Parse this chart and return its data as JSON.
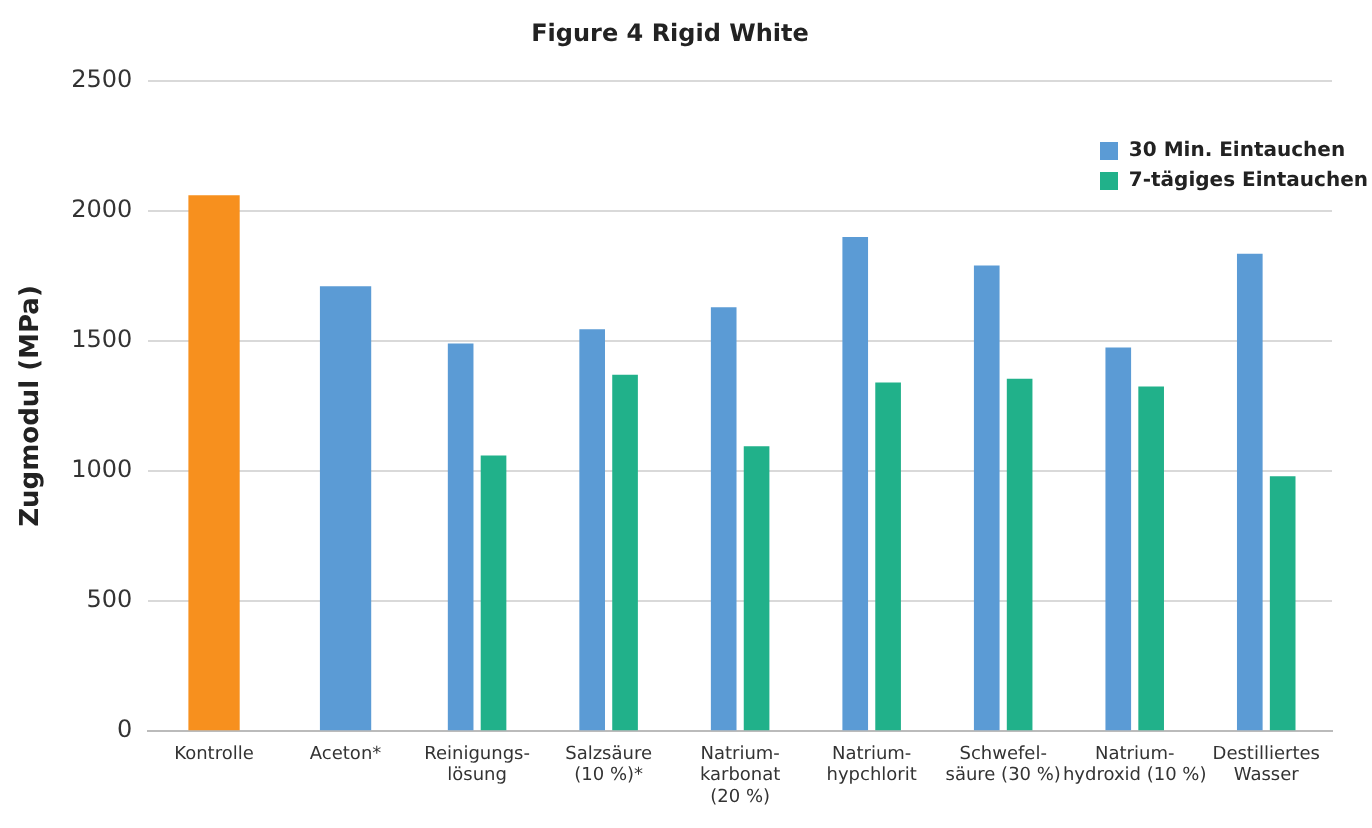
{
  "chart_data": {
    "type": "bar",
    "title": "Figure 4 Rigid White",
    "ylabel": "Zugmodul (MPa)",
    "categories": [
      "Kontrolle",
      "Aceton*",
      "Reinigungs-\nlösung",
      "Salzsäure\n(10 %)*",
      "Natrium-\nkarbonat\n(20 %)",
      "Natrium-\nhypchlorit",
      "Schwefel-\nsäure (30 %)",
      "Natrium-\nhydroxid (10 %)",
      "Destilliertes\nWasser"
    ],
    "series": [
      {
        "color": "#f7901e",
        "values": [
          2060,
          null,
          null,
          null,
          null,
          null,
          null,
          null,
          null
        ]
      },
      {
        "name": "30 Min. Eintauchen",
        "color": "#5b9bd5",
        "values": [
          null,
          1710,
          1490,
          1545,
          1630,
          1900,
          1790,
          1475,
          1835
        ]
      },
      {
        "name": "7-tägiges Eintauchen",
        "color": "#21b18a",
        "values": [
          null,
          null,
          1060,
          1370,
          1095,
          1340,
          1355,
          1325,
          980
        ]
      }
    ],
    "ylim": [
      0,
      2500
    ],
    "yticks": [
      0,
      500,
      1000,
      1500,
      2000,
      2500
    ],
    "grid": "y",
    "legend": "top right"
  }
}
